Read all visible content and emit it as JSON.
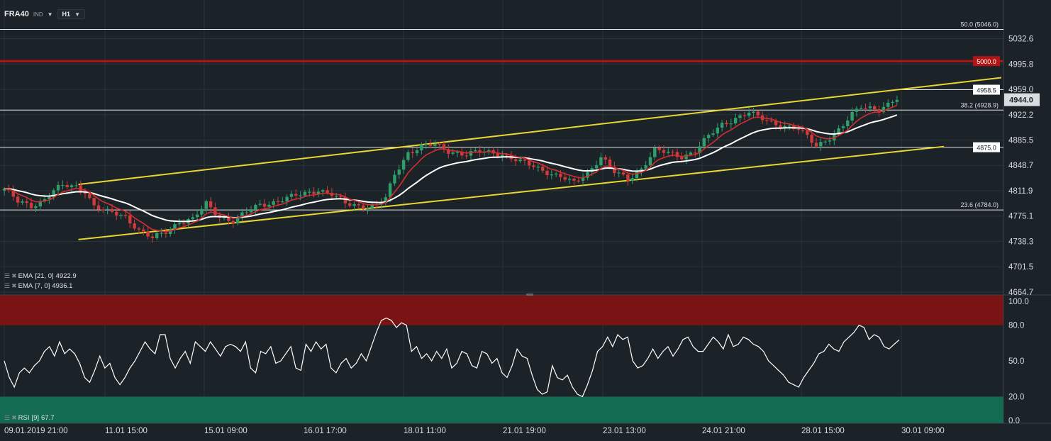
{
  "toolbar": {
    "symbol": "FRA40",
    "instrument_type": "IND",
    "timeframe": "H1"
  },
  "indicators": [
    {
      "name": "EMA",
      "params": "[21, 0]",
      "value": "4922.9"
    },
    {
      "name": "EMA",
      "params": "[7, 0]",
      "value": "4936.1"
    }
  ],
  "rsi": {
    "name": "RSI",
    "params": "[9]",
    "value": "67.7"
  },
  "colors": {
    "background": "#1b2228",
    "grid": "#2a343c",
    "bull": "#2e9e6a",
    "bear": "#d13a3a",
    "ema21": "#ffffff",
    "ema7": "#d12f2f",
    "channel": "#e8d633",
    "resistance": "#b31515",
    "rsi_overbought": "#7a1414",
    "rsi_oversold": "#136b52"
  },
  "chart_data": [
    {
      "type": "candlestick",
      "symbol": "FRA40",
      "timeframe": "H1",
      "y_ticks": [
        "5032.6",
        "4995.8",
        "4959.0",
        "4922.2",
        "4885.5",
        "4848.7",
        "4811.9",
        "4775.1",
        "4738.3",
        "4701.5",
        "4664.7"
      ],
      "ylim": [
        4664.7,
        5060
      ],
      "x_ticks": [
        "09.01.2019  21:00",
        "11.01  15:00",
        "15.01  09:00",
        "16.01  17:00",
        "18.01  11:00",
        "21.01  19:00",
        "23.01  13:00",
        "24.01  21:00",
        "28.01  15:00",
        "30.01  09:00"
      ],
      "last_price": "4944.0",
      "horizontal_lines": [
        {
          "label": "50.0 (5046.0)",
          "value": 5046.0,
          "kind": "fibonacci"
        },
        {
          "label": "5000.0",
          "value": 5000.0,
          "kind": "resistance"
        },
        {
          "label": "4958.5",
          "value": 4958.5,
          "kind": "level"
        },
        {
          "label": "38.2 (4928.9)",
          "value": 4928.9,
          "kind": "fibonacci"
        },
        {
          "label": "4875.0",
          "value": 4875.0,
          "kind": "level"
        },
        {
          "label": "23.6 (4784.0)",
          "value": 4784.0,
          "kind": "fibonacci"
        }
      ],
      "channel": {
        "upper": {
          "from": [
            0.085,
            4821
          ],
          "to": [
            1.0,
            4976
          ]
        },
        "lower": {
          "from": [
            0.085,
            4741
          ],
          "to": [
            0.955,
            4876
          ]
        }
      },
      "close_path": [
        [
          0.0,
          4815
        ],
        [
          0.015,
          4795
        ],
        [
          0.03,
          4790
        ],
        [
          0.045,
          4800
        ],
        [
          0.055,
          4812
        ],
        [
          0.065,
          4818
        ],
        [
          0.08,
          4818
        ],
        [
          0.09,
          4812
        ],
        [
          0.1,
          4790
        ],
        [
          0.115,
          4780
        ],
        [
          0.125,
          4778
        ],
        [
          0.135,
          4775
        ],
        [
          0.15,
          4755
        ],
        [
          0.165,
          4742
        ],
        [
          0.18,
          4752
        ],
        [
          0.195,
          4768
        ],
        [
          0.21,
          4770
        ],
        [
          0.225,
          4792
        ],
        [
          0.24,
          4775
        ],
        [
          0.255,
          4768
        ],
        [
          0.27,
          4780
        ],
        [
          0.285,
          4792
        ],
        [
          0.3,
          4796
        ],
        [
          0.32,
          4802
        ],
        [
          0.335,
          4808
        ],
        [
          0.35,
          4814
        ],
        [
          0.365,
          4806
        ],
        [
          0.38,
          4793
        ],
        [
          0.4,
          4790
        ],
        [
          0.415,
          4790
        ],
        [
          0.425,
          4800
        ],
        [
          0.435,
          4835
        ],
        [
          0.45,
          4868
        ],
        [
          0.465,
          4876
        ],
        [
          0.48,
          4878
        ],
        [
          0.495,
          4870
        ],
        [
          0.515,
          4865
        ],
        [
          0.535,
          4868
        ],
        [
          0.555,
          4866
        ],
        [
          0.575,
          4853
        ],
        [
          0.59,
          4847
        ],
        [
          0.605,
          4840
        ],
        [
          0.62,
          4832
        ],
        [
          0.635,
          4822
        ],
        [
          0.65,
          4838
        ],
        [
          0.665,
          4862
        ],
        [
          0.68,
          4838
        ],
        [
          0.695,
          4828
        ],
        [
          0.71,
          4845
        ],
        [
          0.725,
          4870
        ],
        [
          0.74,
          4866
        ],
        [
          0.755,
          4862
        ],
        [
          0.77,
          4870
        ],
        [
          0.785,
          4890
        ],
        [
          0.8,
          4908
        ],
        [
          0.815,
          4918
        ],
        [
          0.83,
          4925
        ],
        [
          0.84,
          4918
        ],
        [
          0.855,
          4912
        ],
        [
          0.87,
          4906
        ],
        [
          0.885,
          4900
        ],
        [
          0.895,
          4890
        ],
        [
          0.905,
          4878
        ],
        [
          0.915,
          4886
        ],
        [
          0.925,
          4893
        ],
        [
          0.935,
          4905
        ],
        [
          0.945,
          4922
        ],
        [
          0.955,
          4935
        ],
        [
          0.965,
          4934
        ],
        [
          0.975,
          4930
        ],
        [
          0.985,
          4935
        ],
        [
          0.995,
          4944
        ]
      ],
      "series": [
        {
          "name": "EMA [21, 0]",
          "last": 4922.9
        },
        {
          "name": "EMA [7, 0]",
          "last": 4936.1
        }
      ]
    },
    {
      "type": "line",
      "name": "RSI [9]",
      "y_ticks": [
        "100.0",
        "80.0",
        "50.0",
        "20.0",
        "0.0"
      ],
      "ylim": [
        0,
        100
      ],
      "overbought_zone": [
        80,
        100
      ],
      "oversold_zone": [
        0,
        20
      ],
      "values": [
        50,
        36,
        28,
        40,
        44,
        40,
        46,
        50,
        58,
        62,
        54,
        66,
        56,
        60,
        56,
        48,
        36,
        32,
        42,
        54,
        44,
        48,
        36,
        30,
        36,
        44,
        50,
        58,
        66,
        60,
        56,
        72,
        72,
        52,
        44,
        52,
        58,
        48,
        66,
        62,
        58,
        66,
        60,
        54,
        62,
        64,
        62,
        58,
        66,
        44,
        40,
        58,
        56,
        62,
        48,
        50,
        56,
        62,
        44,
        42,
        64,
        58,
        66,
        60,
        64,
        44,
        40,
        48,
        52,
        44,
        48,
        56,
        50,
        62,
        74,
        84,
        86,
        84,
        78,
        82,
        80,
        58,
        62,
        52,
        56,
        50,
        58,
        52,
        60,
        44,
        48,
        58,
        56,
        46,
        44,
        58,
        56,
        48,
        52,
        40,
        36,
        46,
        60,
        54,
        52,
        38,
        26,
        22,
        24,
        46,
        36,
        34,
        38,
        28,
        22,
        20,
        30,
        42,
        58,
        62,
        70,
        62,
        72,
        68,
        70,
        50,
        44,
        46,
        52,
        60,
        52,
        58,
        62,
        54,
        60,
        68,
        70,
        62,
        58,
        58,
        64,
        70,
        66,
        60,
        72,
        62,
        64,
        70,
        68,
        64,
        62,
        58,
        50,
        46,
        42,
        38,
        32,
        30,
        28,
        36,
        42,
        48,
        56,
        58,
        64,
        60,
        58,
        66,
        70,
        74,
        80,
        78,
        68,
        72,
        70,
        62,
        60,
        64,
        67.7
      ]
    }
  ]
}
